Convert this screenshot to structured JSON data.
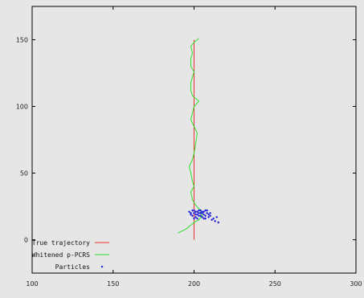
{
  "chart_data": {
    "type": "line",
    "title": "",
    "xlabel": "",
    "ylabel": "",
    "xlim": [
      100,
      300
    ],
    "ylim": [
      -25,
      175
    ],
    "x_ticks": [
      100,
      150,
      200,
      250,
      300
    ],
    "y_ticks": [
      0,
      50,
      100,
      150
    ],
    "x_tick_labels": [
      "100",
      "150",
      "200",
      "250",
      "300"
    ],
    "y_tick_labels": [
      "0",
      "50",
      "100",
      "150"
    ],
    "grid": false,
    "legend_position": "bottom-left",
    "series": [
      {
        "name": "True trajectory",
        "style": "line",
        "color": "#e8352e",
        "points": [
          [
            200,
            0
          ],
          [
            200,
            150
          ]
        ]
      },
      {
        "name": "Whitened p-PCRS",
        "style": "line",
        "color": "#2ee02e",
        "points": [
          [
            190,
            5
          ],
          [
            195,
            8
          ],
          [
            197,
            10
          ],
          [
            200,
            13
          ],
          [
            203,
            15
          ],
          [
            205,
            18
          ],
          [
            204,
            22
          ],
          [
            201,
            26
          ],
          [
            199,
            30
          ],
          [
            198,
            36
          ],
          [
            200,
            40
          ],
          [
            199,
            44
          ],
          [
            198,
            50
          ],
          [
            197,
            55
          ],
          [
            199,
            60
          ],
          [
            200,
            65
          ],
          [
            201,
            72
          ],
          [
            202,
            80
          ],
          [
            200,
            85
          ],
          [
            198,
            90
          ],
          [
            199,
            95
          ],
          [
            200,
            100
          ],
          [
            203,
            104
          ],
          [
            199,
            108
          ],
          [
            198,
            112
          ],
          [
            198,
            118
          ],
          [
            199,
            122
          ],
          [
            200,
            126
          ],
          [
            198,
            130
          ],
          [
            198,
            136
          ],
          [
            199,
            140
          ],
          [
            198,
            145
          ],
          [
            200,
            148
          ],
          [
            203,
            151
          ]
        ]
      },
      {
        "name": "Particles",
        "style": "points",
        "color": "#1a1ad6",
        "points": [
          [
            197,
            21
          ],
          [
            198,
            20
          ],
          [
            199,
            22
          ],
          [
            200,
            20
          ],
          [
            201,
            21
          ],
          [
            202,
            19
          ],
          [
            203,
            22
          ],
          [
            204,
            20
          ],
          [
            205,
            21
          ],
          [
            206,
            19
          ],
          [
            207,
            22
          ],
          [
            208,
            20
          ],
          [
            199,
            18
          ],
          [
            201,
            17
          ],
          [
            203,
            18
          ],
          [
            205,
            17
          ],
          [
            207,
            18
          ],
          [
            209,
            17
          ],
          [
            198,
            19
          ],
          [
            200,
            22
          ],
          [
            202,
            21
          ],
          [
            204,
            22
          ],
          [
            206,
            21
          ],
          [
            208,
            22
          ],
          [
            210,
            18
          ],
          [
            212,
            16
          ],
          [
            214,
            17
          ],
          [
            213,
            14
          ],
          [
            211,
            15
          ],
          [
            215,
            13
          ],
          [
            200,
            16
          ],
          [
            202,
            16
          ],
          [
            204,
            18
          ],
          [
            206,
            16
          ],
          [
            209,
            19
          ],
          [
            203,
            20
          ],
          [
            201,
            19
          ],
          [
            205,
            20
          ],
          [
            207,
            16
          ],
          [
            210,
            20
          ]
        ]
      }
    ]
  }
}
